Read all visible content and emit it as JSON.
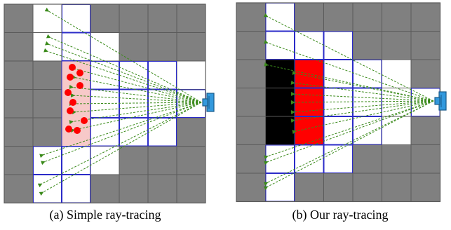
{
  "captions": {
    "a": "(a) Simple ray-tracing",
    "b": "(b) Our ray-tracing"
  },
  "colors": {
    "occupied": "#808080",
    "free": "#ffffff",
    "grid_line": "#5a5a5a",
    "visited_cell_border": "#2b2bc8",
    "ray": "#3a8a1a",
    "hit_point": "#ff0000",
    "highlight_fill": "#f7c9c9",
    "detected_black": "#000000",
    "detected_red": "#ff0000",
    "sensor": "#3399dd"
  },
  "panels": [
    {
      "id": "a",
      "free_cells": [
        [
          0,
          1
        ],
        [
          0,
          2
        ],
        [
          1,
          1
        ],
        [
          1,
          2
        ],
        [
          1,
          3
        ],
        [
          2,
          2
        ],
        [
          2,
          3
        ],
        [
          2,
          4
        ],
        [
          2,
          5
        ],
        [
          2,
          6
        ],
        [
          3,
          2
        ],
        [
          3,
          3
        ],
        [
          3,
          4
        ],
        [
          3,
          5
        ],
        [
          3,
          6
        ],
        [
          4,
          2
        ],
        [
          4,
          3
        ],
        [
          4,
          4
        ],
        [
          4,
          5
        ],
        [
          5,
          1
        ],
        [
          5,
          2
        ],
        [
          5,
          3
        ],
        [
          6,
          1
        ],
        [
          6,
          2
        ]
      ],
      "icon": "lidar-sensor-icon"
    },
    {
      "id": "b",
      "free_cells": [
        [
          0,
          1
        ],
        [
          1,
          1
        ],
        [
          1,
          2
        ],
        [
          1,
          3
        ],
        [
          2,
          1
        ],
        [
          2,
          2
        ],
        [
          2,
          3
        ],
        [
          2,
          4
        ],
        [
          2,
          5
        ],
        [
          3,
          1
        ],
        [
          3,
          2
        ],
        [
          3,
          3
        ],
        [
          3,
          4
        ],
        [
          3,
          5
        ],
        [
          3,
          6
        ],
        [
          4,
          1
        ],
        [
          4,
          2
        ],
        [
          4,
          3
        ],
        [
          4,
          4
        ],
        [
          4,
          5
        ],
        [
          5,
          1
        ],
        [
          5,
          2
        ],
        [
          5,
          3
        ],
        [
          6,
          1
        ]
      ],
      "black_cells": [
        [
          2,
          1
        ],
        [
          3,
          1
        ],
        [
          4,
          1
        ]
      ],
      "red_cells": [
        [
          2,
          2
        ],
        [
          3,
          2
        ],
        [
          4,
          2
        ]
      ],
      "icon": "lidar-sensor-icon"
    }
  ]
}
